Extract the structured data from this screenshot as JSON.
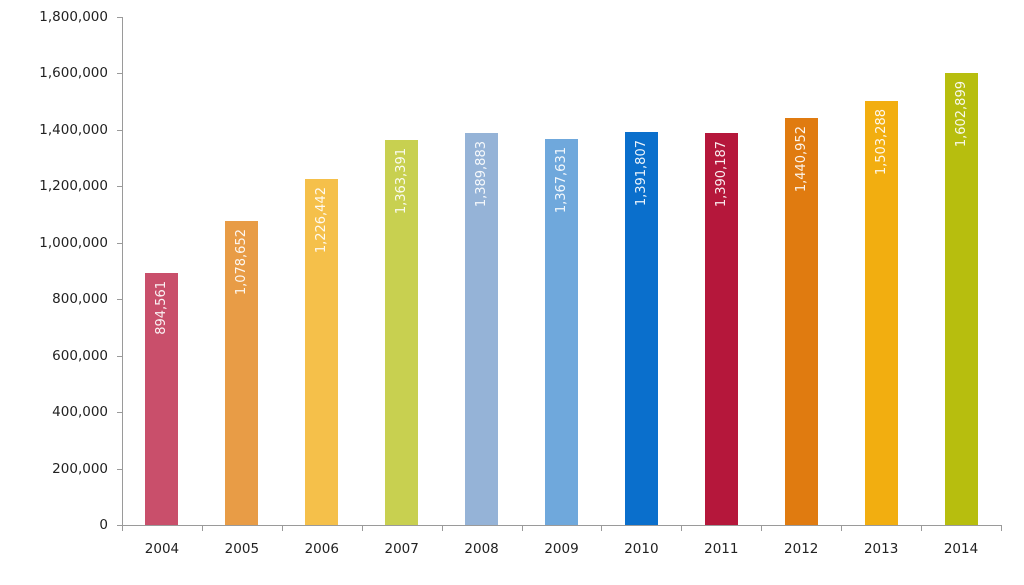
{
  "chart_data": {
    "type": "bar",
    "title": "",
    "xlabel": "",
    "ylabel": "",
    "ylim": [
      0,
      1800000
    ],
    "grid": false,
    "legend": null,
    "y_ticks": [
      "0",
      "200,000",
      "400,000",
      "600,000",
      "800,000",
      "1,000,000",
      "1,200,000",
      "1,400,000",
      "1,600,000",
      "1,800,000"
    ],
    "y_tick_values": [
      0,
      200000,
      400000,
      600000,
      800000,
      1000000,
      1200000,
      1400000,
      1600000,
      1800000
    ],
    "categories": [
      "2004",
      "2005",
      "2006",
      "2007",
      "2008",
      "2009",
      "2010",
      "2011",
      "2012",
      "2013",
      "2014"
    ],
    "values": [
      894561,
      1078652,
      1226442,
      1363391,
      1389883,
      1367631,
      1391807,
      1390187,
      1440952,
      1503288,
      1602899
    ],
    "data_labels": [
      "894,561",
      "1,078,652",
      "1,226,442",
      "1,363,391",
      "1,389,883",
      "1,367,631",
      "1,391,807",
      "1,390,187",
      "1,440,952",
      "1,503,288",
      "1,602,899"
    ],
    "colors": [
      "#c94f6b",
      "#e89c46",
      "#f5c04a",
      "#c8d050",
      "#95b3d7",
      "#6fa8dc",
      "#0a6fcc",
      "#b5173b",
      "#e07b10",
      "#f2ae10",
      "#b7be0e"
    ]
  }
}
